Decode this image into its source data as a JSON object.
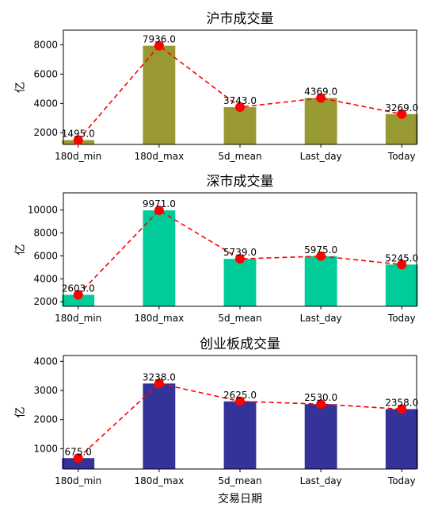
{
  "xlabel": "交易日期",
  "chart_data": [
    {
      "type": "bar",
      "title": "沪市成交量",
      "xlabel": "",
      "ylabel": "亿",
      "categories": [
        "180d_min",
        "180d_max",
        "5d_mean",
        "Last_day",
        "Today"
      ],
      "values": [
        1495.0,
        7936.0,
        3743.0,
        4369.0,
        3269.0
      ],
      "value_labels": [
        "1495.0",
        "7936.0",
        "3743.0",
        "4369.0",
        "3269.0"
      ],
      "ylim": [
        1200,
        9000
      ],
      "yticks": [
        2000,
        4000,
        6000,
        8000
      ],
      "bar_color": "#999933",
      "line_color": "#ff0000",
      "line_style": "dashed",
      "marker": "circle",
      "grid": false
    },
    {
      "type": "bar",
      "title": "深市成交量",
      "xlabel": "",
      "ylabel": "亿",
      "categories": [
        "180d_min",
        "180d_max",
        "5d_mean",
        "Last_day",
        "Today"
      ],
      "values": [
        2603.0,
        9971.0,
        5739.0,
        5975.0,
        5245.0
      ],
      "value_labels": [
        "2603.0",
        "9971.0",
        "5739.0",
        "5975.0",
        "5245.0"
      ],
      "ylim": [
        1600,
        11500
      ],
      "yticks": [
        2000,
        4000,
        6000,
        8000,
        10000
      ],
      "bar_color": "#00cc99",
      "line_color": "#ff0000",
      "line_style": "dashed",
      "marker": "circle",
      "grid": false
    },
    {
      "type": "bar",
      "title": "创业板成交量",
      "xlabel": "交易日期",
      "ylabel": "亿",
      "categories": [
        "180d_min",
        "180d_max",
        "5d_mean",
        "Last_day",
        "Today"
      ],
      "values": [
        675.0,
        3238.0,
        2625.0,
        2530.0,
        2358.0
      ],
      "value_labels": [
        "675.0",
        "3238.0",
        "2625.0",
        "2530.0",
        "2358.0"
      ],
      "ylim": [
        300,
        4200
      ],
      "yticks": [
        1000,
        2000,
        3000,
        4000
      ],
      "bar_color": "#333399",
      "line_color": "#ff0000",
      "line_style": "dashed",
      "marker": "circle",
      "grid": false
    }
  ]
}
